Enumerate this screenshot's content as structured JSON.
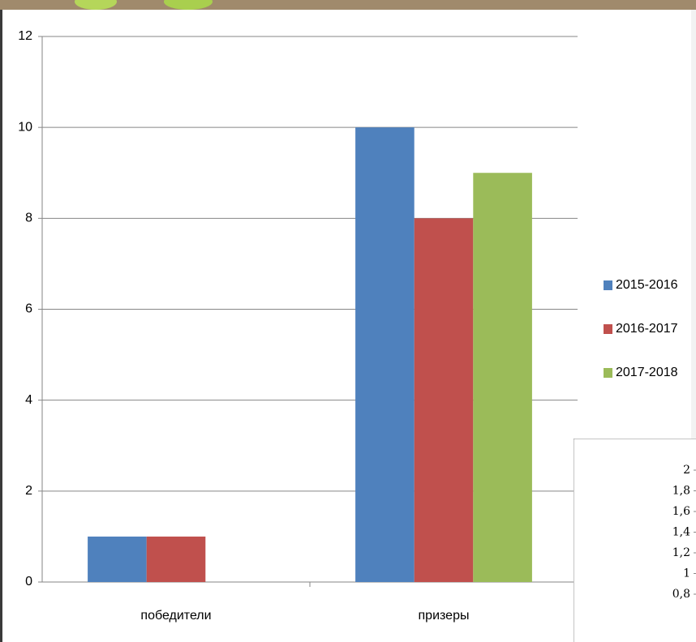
{
  "chart_data": [
    {
      "type": "bar",
      "categories": [
        "победители",
        "призеры"
      ],
      "series": [
        {
          "name": "2015-2016",
          "color": "#4f81bd",
          "values": [
            1,
            10
          ]
        },
        {
          "name": "2016-2017",
          "color": "#c0504d",
          "values": [
            1,
            8
          ]
        },
        {
          "name": "2017-2018",
          "color": "#9bbb59",
          "values": [
            0,
            9
          ]
        }
      ],
      "ylim": [
        0,
        12
      ],
      "yticks": [
        0,
        2,
        4,
        6,
        8,
        10,
        12
      ],
      "grid": true,
      "legend": "right"
    },
    {
      "type": "bar",
      "ylim": [
        0,
        2
      ],
      "yticks": [
        {
          "value": 0.8,
          "label": "0,8"
        },
        1,
        {
          "value": 1.2,
          "label": "1,2"
        },
        {
          "value": 1.4,
          "label": "1,4"
        },
        {
          "value": 1.6,
          "label": "1,6"
        },
        {
          "value": 1.8,
          "label": "1,8"
        },
        2
      ],
      "grid": false
    }
  ]
}
